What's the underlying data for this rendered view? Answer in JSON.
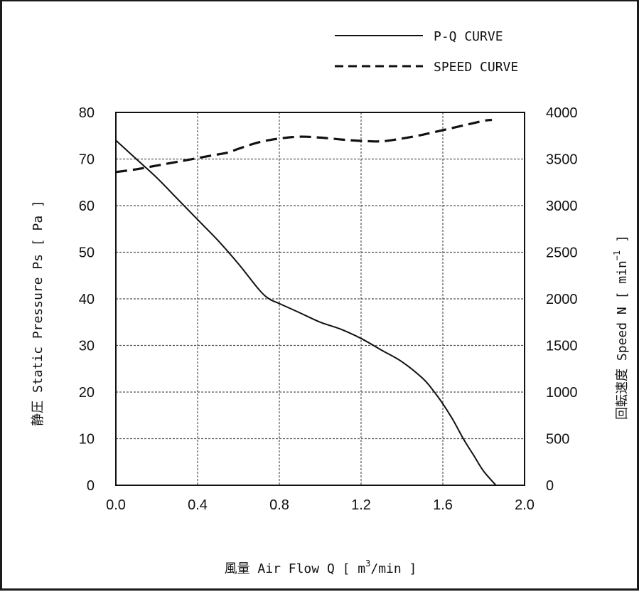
{
  "chart_data": {
    "type": "line",
    "xlabel": {
      "prefix": "風量 Air Flow Q [ m",
      "superscript": "3",
      "suffix": "/min ]"
    },
    "ylabel_left": "静圧 Static Pressure Ps [ Pa ]",
    "ylabel_right": {
      "prefix": "回転速度 Speed N [ min",
      "superscript": "−1",
      "suffix": " ]"
    },
    "xlim": [
      0.0,
      2.0
    ],
    "ylim_left": [
      0,
      80
    ],
    "ylim_right": [
      0,
      4000
    ],
    "x_ticks": [
      "0.0",
      "0.4",
      "0.8",
      "1.2",
      "1.6",
      "2.0"
    ],
    "y_left_ticks": [
      "0",
      "10",
      "20",
      "30",
      "40",
      "50",
      "60",
      "70",
      "80"
    ],
    "y_right_ticks": [
      "0",
      "500",
      "1000",
      "1500",
      "2000",
      "2500",
      "3000",
      "3500",
      "4000"
    ],
    "grid": true,
    "legend_position": "top-right",
    "series": [
      {
        "name": "P-Q CURVE",
        "axis": "left",
        "style": "solid",
        "color": "#111111",
        "x": [
          0.0,
          0.1,
          0.2,
          0.3,
          0.4,
          0.5,
          0.6,
          0.7,
          0.75,
          0.8,
          0.9,
          1.0,
          1.1,
          1.2,
          1.3,
          1.4,
          1.5,
          1.55,
          1.6,
          1.65,
          1.7,
          1.75,
          1.8,
          1.86
        ],
        "y": [
          74,
          70,
          66,
          61.5,
          57,
          52.5,
          47.5,
          42,
          40,
          39,
          37,
          35,
          33.5,
          31.5,
          29,
          26.5,
          23,
          20.5,
          17.5,
          14,
          10,
          6.5,
          3,
          0
        ]
      },
      {
        "name": "SPEED CURVE",
        "axis": "right",
        "style": "dashed",
        "color": "#111111",
        "x": [
          0.0,
          0.1,
          0.2,
          0.3,
          0.4,
          0.5,
          0.55,
          0.6,
          0.7,
          0.8,
          0.9,
          1.0,
          1.1,
          1.2,
          1.3,
          1.4,
          1.5,
          1.6,
          1.7,
          1.8,
          1.84
        ],
        "y": [
          3360,
          3390,
          3430,
          3470,
          3510,
          3550,
          3570,
          3610,
          3680,
          3720,
          3740,
          3730,
          3710,
          3695,
          3690,
          3720,
          3760,
          3810,
          3860,
          3910,
          3920
        ]
      }
    ]
  }
}
